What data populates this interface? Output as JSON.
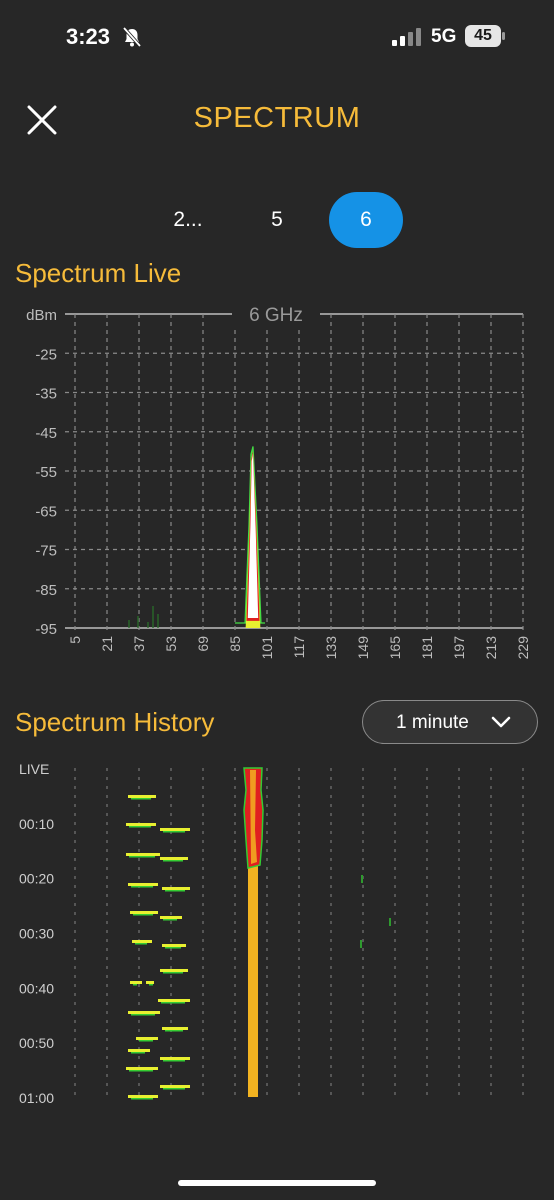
{
  "status": {
    "time": "3:23",
    "network": "5G",
    "battery": "45",
    "icons": [
      "bell-muted-icon",
      "signal-icon",
      "battery-icon"
    ]
  },
  "header": {
    "title": "SPECTRUM",
    "close_icon": "close-icon"
  },
  "band_tabs": [
    {
      "label": "2...",
      "active": false
    },
    {
      "label": "5",
      "active": false
    },
    {
      "label": "6",
      "active": true
    }
  ],
  "live": {
    "section_title": "Spectrum Live",
    "chart_label": "6 GHz",
    "y_unit": "dBm",
    "y_ticks": [
      "-25",
      "-35",
      "-45",
      "-55",
      "-65",
      "-75",
      "-85",
      "-95"
    ],
    "x_ticks": [
      "5",
      "21",
      "37",
      "53",
      "69",
      "85",
      "101",
      "117",
      "133",
      "149",
      "165",
      "181",
      "197",
      "213",
      "229"
    ]
  },
  "history": {
    "section_title": "Spectrum History",
    "time_range": "1 minute",
    "chevron_icon": "chevron-down-icon",
    "y_ticks": [
      "LIVE",
      "00:10",
      "00:20",
      "00:30",
      "00:40",
      "00:50",
      "01:00"
    ]
  },
  "chart_data": {
    "type": "area",
    "title": "6 GHz",
    "ylabel": "dBm",
    "ylim": [
      -95,
      -15
    ],
    "xlim": [
      5,
      229
    ],
    "x_ticks": [
      5,
      21,
      37,
      53,
      69,
      85,
      101,
      117,
      133,
      149,
      165,
      181,
      197,
      213,
      229
    ],
    "grid": true,
    "series": [
      {
        "x": [
          85,
          90,
          92,
          93,
          94,
          96,
          98,
          100
        ],
        "values": [
          -95,
          -95,
          -70,
          -52,
          -50,
          -70,
          -95,
          -95
        ]
      }
    ]
  },
  "colors": {
    "accent": "#F6BB3A",
    "tab_active": "#1592E6",
    "background": "#272727",
    "peak_white": "#FFFFFF",
    "signal_green": "#33CC33",
    "signal_yellow": "#E8F030",
    "signal_red": "#E02020",
    "history_orange": "#F2B321"
  }
}
